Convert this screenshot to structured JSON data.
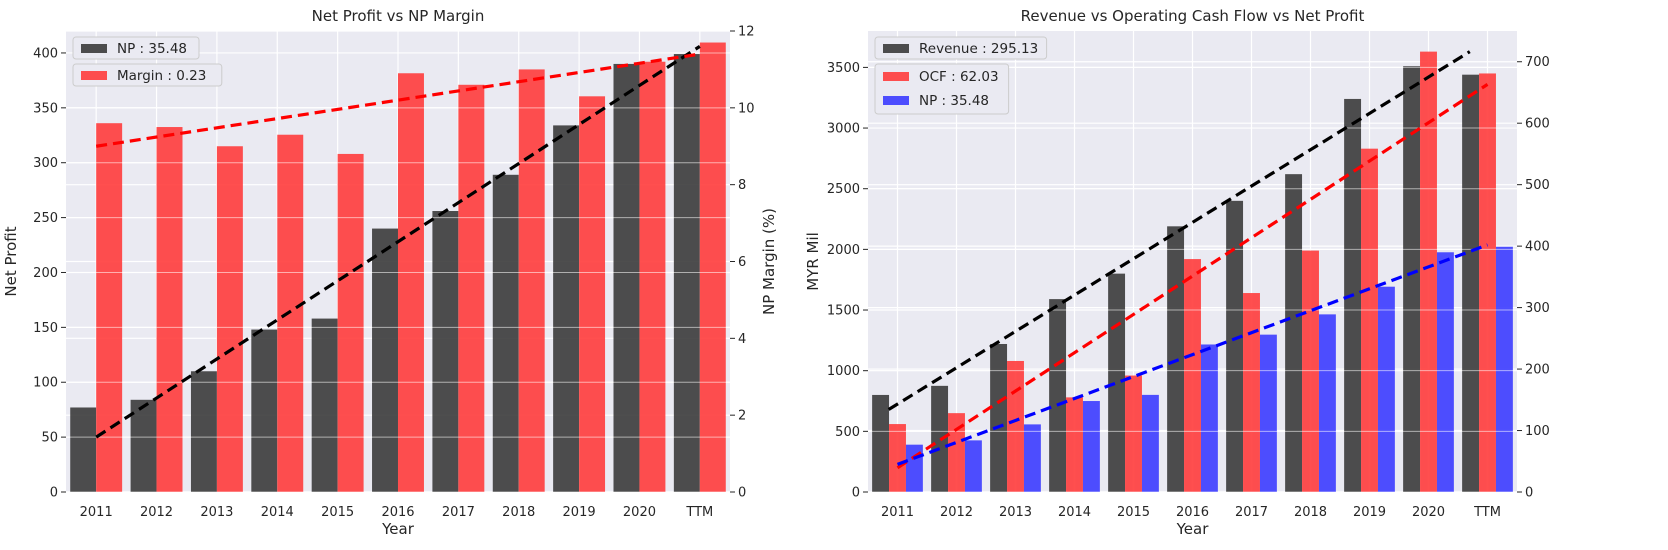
{
  "chart_data": [
    {
      "type": "bar",
      "title": "Net Profit vs NP Margin",
      "xlabel": "Year",
      "ylabel": "Net Profit",
      "y2label": "NP Margin (%)",
      "categories": [
        "2011",
        "2012",
        "2013",
        "2014",
        "2015",
        "2016",
        "2017",
        "2018",
        "2019",
        "2020",
        "TTM"
      ],
      "ylim": [
        0,
        420
      ],
      "y2lim": [
        0,
        12
      ],
      "yticks": [
        0,
        50,
        100,
        150,
        200,
        250,
        300,
        350,
        400
      ],
      "y2ticks": [
        0,
        2,
        4,
        6,
        8,
        10,
        12
      ],
      "grid": true,
      "legend_position": "top-left",
      "series": [
        {
          "name": "NP : 35.48",
          "axis": "left",
          "color": "#3b3b3b",
          "values": [
            77,
            84,
            110,
            148,
            158,
            240,
            256,
            289,
            334,
            390,
            399
          ]
        },
        {
          "name": "Margin : 0.23",
          "axis": "right",
          "color": "#ff3c3c",
          "values": [
            9.6,
            9.5,
            9.0,
            9.3,
            8.8,
            10.9,
            10.6,
            11.0,
            10.3,
            11.2,
            11.7
          ]
        }
      ],
      "trendlines": [
        {
          "axis": "left",
          "color": "#000000",
          "from": [
            0,
            50
          ],
          "to": [
            10,
            406
          ]
        },
        {
          "axis": "right",
          "color": "#ff0000",
          "from": [
            0,
            9.0
          ],
          "to": [
            10,
            11.4
          ]
        }
      ]
    },
    {
      "type": "bar",
      "title": "Revenue vs Operating Cash Flow vs Net Profit",
      "xlabel": "Year",
      "ylabel": "MYR Mil",
      "y2label": "",
      "categories": [
        "2011",
        "2012",
        "2013",
        "2014",
        "2015",
        "2016",
        "2017",
        "2018",
        "2019",
        "2020",
        "TTM"
      ],
      "ylim": [
        0,
        3800
      ],
      "y2lim": [
        0,
        750
      ],
      "yticks": [
        0,
        500,
        1000,
        1500,
        2000,
        2500,
        3000,
        3500
      ],
      "y2ticks": [
        0,
        100,
        200,
        300,
        400,
        500,
        600,
        700
      ],
      "grid": true,
      "legend_position": "top-left",
      "series": [
        {
          "name": "Revenue : 295.13",
          "axis": "left",
          "color": "#3b3b3b",
          "values": [
            800,
            875,
            1220,
            1590,
            1800,
            2190,
            2400,
            2620,
            3240,
            3510,
            3440
          ]
        },
        {
          "name": "OCF : 62.03",
          "axis": "left",
          "color": "#ff3c3c",
          "values": [
            560,
            650,
            1080,
            780,
            960,
            1920,
            1640,
            1990,
            2830,
            3630,
            3450
          ]
        },
        {
          "name": "NP : 35.48",
          "axis": "right",
          "color": "#3c3cff",
          "values": [
            77,
            84,
            110,
            148,
            158,
            240,
            256,
            289,
            334,
            390,
            399
          ]
        }
      ],
      "trendlines": [
        {
          "axis": "left",
          "color": "#000000",
          "from": [
            -0.15,
            680
          ],
          "to": [
            9.7,
            3630
          ]
        },
        {
          "axis": "left",
          "color": "#ff0000",
          "from": [
            0,
            200
          ],
          "to": [
            10,
            3360
          ]
        },
        {
          "axis": "right",
          "color": "#0000ff",
          "from": [
            0,
            45
          ],
          "to": [
            10,
            402
          ]
        }
      ]
    }
  ]
}
